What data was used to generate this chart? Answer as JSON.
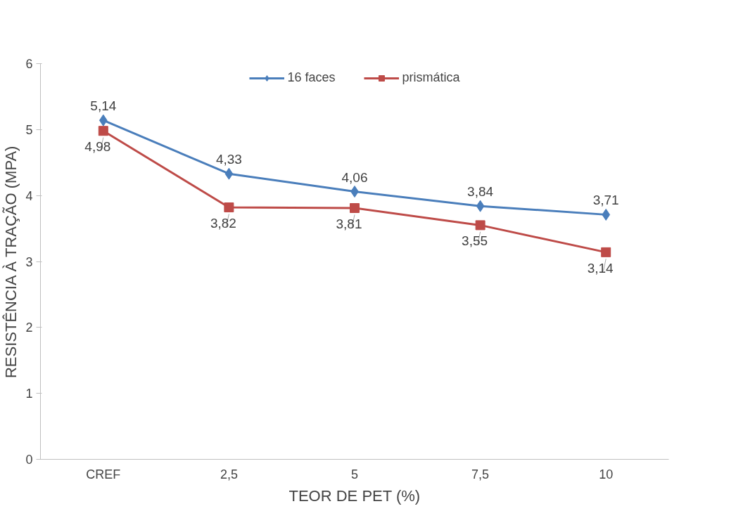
{
  "chart_data": {
    "type": "line",
    "xlabel": "TEOR DE PET (%)",
    "ylabel": "RESISTÊNCIA À TRAÇÃO (MPA)",
    "categories": [
      "CREF",
      "2,5",
      "5",
      "7,5",
      "10"
    ],
    "ylim": [
      0,
      6
    ],
    "yticks": [
      0,
      1,
      2,
      3,
      4,
      5,
      6
    ],
    "grid": false,
    "legend": "top",
    "series": [
      {
        "name": "16 faces",
        "color": "#4a7ebb",
        "marker": "diamond",
        "values": [
          5.14,
          4.33,
          4.06,
          3.84,
          3.71
        ],
        "value_labels": [
          "5,14",
          "4,33",
          "4,06",
          "3,84",
          "3,71"
        ]
      },
      {
        "name": "prismática",
        "color": "#be4b48",
        "marker": "square",
        "values": [
          4.98,
          3.82,
          3.81,
          3.55,
          3.14
        ],
        "value_labels": [
          "4,98",
          "3,82",
          "3,81",
          "3,55",
          "3,14"
        ]
      }
    ]
  }
}
